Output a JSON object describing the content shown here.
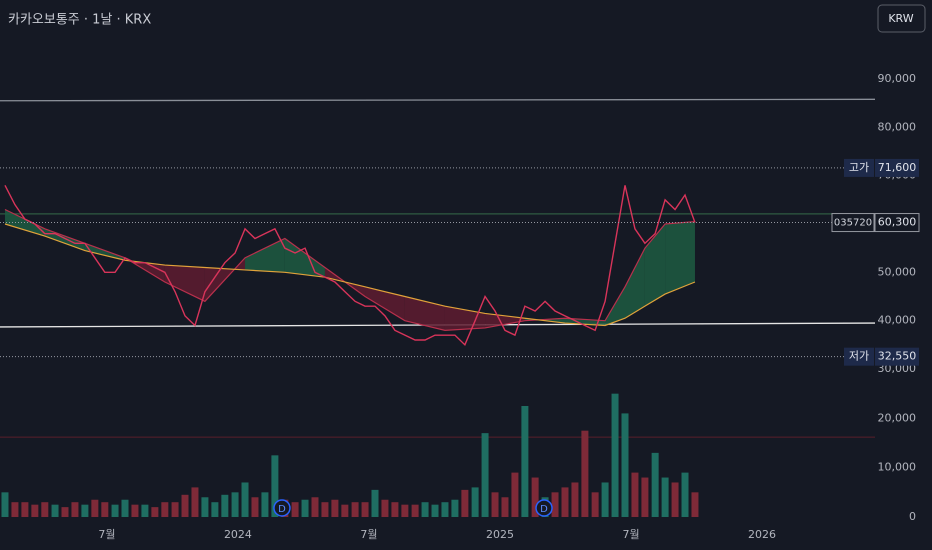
{
  "header": {
    "title": "카카오보통주 · 1날 · KRX",
    "currency_button": "KRW"
  },
  "chart_data": [
    {
      "type": "line",
      "xlim": [
        2023.092,
        2026.431
      ],
      "xticks": [
        {
          "value": 2023.5,
          "label": "7월"
        },
        2024,
        {
          "value": 2024.5,
          "label": "7월"
        },
        2025,
        {
          "value": 2025.5,
          "label": "7월"
        },
        2026
      ],
      "ylim": [
        30000,
        90000
      ],
      "yticks": [
        {
          "value": 30000,
          "label": "30,000"
        },
        {
          "value": 40000,
          "label": "40,000"
        },
        {
          "value": 50000,
          "label": "50,000"
        },
        {
          "value": 60000,
          "label": "60,000"
        },
        {
          "value": 70000,
          "label": "70,000"
        },
        {
          "value": 80000,
          "label": "80,000"
        },
        {
          "value": 90000,
          "label": "90,000"
        }
      ],
      "series": [
        {
          "color": "#d8345a",
          "x": [
            2023.111,
            2023.149,
            2023.187,
            2023.225,
            2023.263,
            2023.302,
            2023.34,
            2023.378,
            2023.416,
            2023.454,
            2023.492,
            2023.531,
            2023.569,
            2023.607,
            2023.645,
            2023.683,
            2023.721,
            2023.76,
            2023.798,
            2023.836,
            2023.874,
            2023.912,
            2023.95,
            2023.989,
            2024.027,
            2024.065,
            2024.103,
            2024.141,
            2024.179,
            2024.218,
            2024.256,
            2024.294,
            2024.332,
            2024.37,
            2024.408,
            2024.447,
            2024.485,
            2024.523,
            2024.561,
            2024.599,
            2024.637,
            2024.676,
            2024.714,
            2024.752,
            2024.79,
            2024.828,
            2024.866,
            2024.905,
            2024.943,
            2024.981,
            2025.019,
            2025.057,
            2025.095,
            2025.134,
            2025.172,
            2025.21,
            2025.248,
            2025.286,
            2025.324,
            2025.363,
            2025.401,
            2025.439,
            2025.477,
            2025.515,
            2025.553,
            2025.592,
            2025.63,
            2025.668,
            2025.706,
            2025.744
          ],
          "values": [
            68000,
            64000,
            61000,
            60000,
            58000,
            58000,
            57000,
            56000,
            56000,
            53000,
            50000,
            50000,
            53000,
            52000,
            52000,
            51000,
            50000,
            46000,
            41000,
            39000,
            46000,
            49000,
            52000,
            54000,
            59000,
            57000,
            58000,
            59000,
            55000,
            54000,
            55000,
            50000,
            49000,
            48000,
            46000,
            44000,
            43000,
            43000,
            41000,
            38000,
            37000,
            36000,
            36000,
            37000,
            37000,
            37000,
            35000,
            40000,
            45000,
            42000,
            38000,
            37000,
            43000,
            42000,
            44000,
            42000,
            41000,
            40000,
            39000,
            38000,
            44000,
            56000,
            68000,
            59000,
            56000,
            58000,
            65000,
            63000,
            66000,
            60300
          ]
        },
        {
          "color": "#e0a23a",
          "x": [
            2023.111,
            2023.263,
            2023.416,
            2023.569,
            2023.721,
            2023.874,
            2024.027,
            2024.179,
            2024.332,
            2024.485,
            2024.637,
            2024.79,
            2024.943,
            2025.095,
            2025.248,
            2025.401,
            2025.477,
            2025.553,
            2025.63,
            2025.744
          ],
          "values": [
            60000,
            57500,
            54500,
            52500,
            51500,
            51000,
            50500,
            50000,
            49000,
            47000,
            45000,
            43000,
            41500,
            40500,
            39500,
            39000,
            40500,
            43000,
            45500,
            48000
          ]
        },
        {
          "color": "#b8304c",
          "x": [
            2023.111,
            2023.263,
            2023.416,
            2023.569,
            2023.721,
            2023.874,
            2024.027,
            2024.179,
            2024.332,
            2024.485,
            2024.637,
            2024.79,
            2024.943,
            2025.095,
            2025.248,
            2025.401,
            2025.477,
            2025.553,
            2025.63,
            2025.744
          ],
          "values": [
            63000,
            59000,
            56000,
            53000,
            48000,
            44000,
            53000,
            57000,
            51000,
            45000,
            40000,
            38000,
            38500,
            40000,
            40500,
            40000,
            47000,
            55000,
            60000,
            60500
          ]
        }
      ],
      "cloud_colors": {
        "up": "#1d5c42",
        "down": "#5e1c30"
      },
      "trend_lines": [
        {
          "y": [
            85500,
            85800
          ],
          "color": "#8a8f98"
        },
        {
          "y": [
            38700,
            39500
          ],
          "color": "#e6e6e6"
        },
        {
          "y": [
            62100,
            62100
          ],
          "color": "#2f5a42"
        }
      ],
      "markers": [
        {
          "label": "고가",
          "value": 71600,
          "value_label": "71,600"
        },
        {
          "label": "035720",
          "value": 60300,
          "value_label": "60,300"
        },
        {
          "label": "저가",
          "value": 32550,
          "value_label": "32,550"
        }
      ]
    },
    {
      "type": "bar",
      "ylim": [
        0,
        30000
      ],
      "yticks": [
        0,
        {
          "value": 10000,
          "label": "10,000"
        },
        {
          "value": 20000,
          "label": "20,000"
        }
      ],
      "up_color": "#1f6e62",
      "down_color": "#7e2a38",
      "values": [
        5000,
        3000,
        3000,
        2500,
        3000,
        2500,
        2000,
        3000,
        2500,
        3500,
        3000,
        2500,
        3500,
        2500,
        2500,
        2000,
        3000,
        3000,
        4500,
        6000,
        4000,
        3000,
        4500,
        5000,
        7000,
        4000,
        5000,
        12500,
        3500,
        3000,
        3500,
        4000,
        3000,
        3500,
        2500,
        3000,
        3000,
        5500,
        3500,
        3000,
        2500,
        2500,
        3000,
        2500,
        3000,
        3500,
        5500,
        6000,
        17000,
        5000,
        4000,
        9000,
        22500,
        8000,
        4000,
        5000,
        6000,
        7000,
        17500,
        5000,
        7000,
        25000,
        21000,
        9000,
        8000,
        13000,
        8000,
        7000,
        9000,
        5000
      ],
      "trend_lines": [
        {
          "y": [
            16200,
            16200
          ],
          "color": "#5a1f2a"
        }
      ],
      "events": [
        {
          "x": 2024.168,
          "label": "D"
        },
        {
          "x": 2025.168,
          "label": "D"
        }
      ]
    }
  ]
}
